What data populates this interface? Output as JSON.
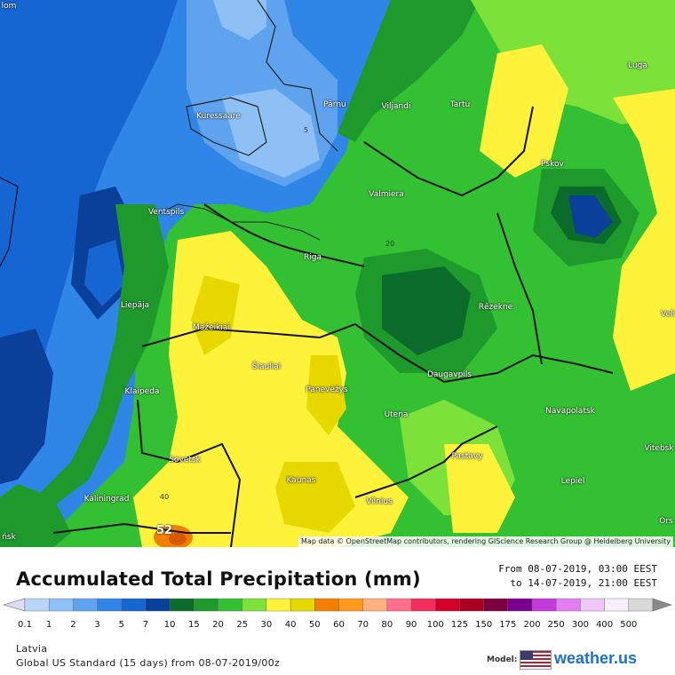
{
  "map": {
    "credit": "Map data © OpenStreetMap contributors, rendering GIScience Research Group @ Heidelberg University",
    "max_value_label": "52",
    "contour_labels": [
      {
        "text": "5"
      },
      {
        "text": "20"
      },
      {
        "text": "40"
      }
    ],
    "cities": [
      {
        "name": "Kuressaare"
      },
      {
        "name": "Pärnu"
      },
      {
        "name": "Viljandi"
      },
      {
        "name": "Tartu"
      },
      {
        "name": "Luga"
      },
      {
        "name": "Pskov"
      },
      {
        "name": "Valmiera"
      },
      {
        "name": "Ventspils"
      },
      {
        "name": "Riga"
      },
      {
        "name": "Liepāja"
      },
      {
        "name": "Rēzekne"
      },
      {
        "name": "Mažeikiai"
      },
      {
        "name": "Šiauliai"
      },
      {
        "name": "Panevėžys"
      },
      {
        "name": "Daugavpils"
      },
      {
        "name": "Klaipeda"
      },
      {
        "name": "Utena"
      },
      {
        "name": "Navapolatsk"
      },
      {
        "name": "Vitebsk"
      },
      {
        "name": "Sovetsk"
      },
      {
        "name": "Pastavy"
      },
      {
        "name": "Kaunas"
      },
      {
        "name": "Lepiel"
      },
      {
        "name": "Kaliningrad"
      },
      {
        "name": "Vilnius"
      },
      {
        "name": "Orsha",
        "display": "Ors"
      },
      {
        "name": "Velikiye Luki",
        "display": "Veli"
      },
      {
        "name": "Minsk edge",
        "display": "ńsk"
      },
      {
        "name": "Tallinn edge",
        "display": "lom"
      }
    ]
  },
  "legend": {
    "title": "Accumulated Total Precipitation (mm)",
    "period_from": "From 08-07-2019, 03:00 EEST",
    "period_to": "to 14-07-2019, 21:00 EEST",
    "ticks": [
      "0.1",
      "1",
      "2",
      "3",
      "5",
      "7",
      "10",
      "15",
      "20",
      "25",
      "30",
      "40",
      "50",
      "60",
      "70",
      "80",
      "90",
      "100",
      "125",
      "150",
      "175",
      "200",
      "250",
      "300",
      "400",
      "500"
    ],
    "colors": [
      "#dcdcf5",
      "#b9d5f7",
      "#8ec0f5",
      "#5fa3ee",
      "#2f86e6",
      "#1565d2",
      "#0a3f9a",
      "#0b6b2a",
      "#1e9a2c",
      "#33c133",
      "#7ce23a",
      "#fff23a",
      "#e6d800",
      "#f27f00",
      "#ff9a1f",
      "#ffb080",
      "#ff6e8a",
      "#f0305a",
      "#d4002a",
      "#a8001e",
      "#7d0040",
      "#7a0090",
      "#c23ad8",
      "#e27ef2",
      "#f0c8f7",
      "#f7f0fb",
      "#d9d9d9",
      "#8a8a8a"
    ],
    "region": "Latvia",
    "model_run": "Global US Standard (15 days) from 08-07-2019/00z",
    "model_label": "Model:",
    "brand": "weather.us"
  }
}
